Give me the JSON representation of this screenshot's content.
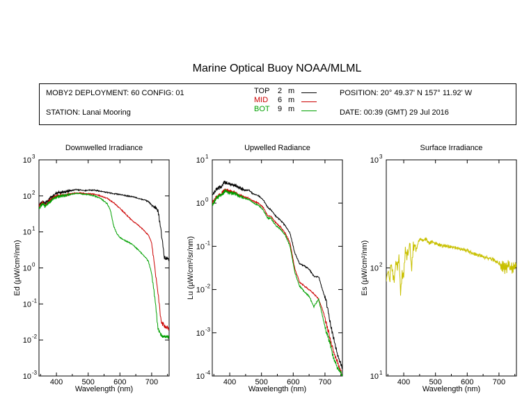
{
  "header": {
    "title": "Marine Optical Buoy NOAA/MLML",
    "deployment": "MOBY2 DEPLOYMENT: 60 CONFIG: 01",
    "station": "STATION: Lanai Mooring",
    "position": "POSITION: 20° 49.37' N   157° 11.92' W",
    "date": "DATE: 00:39 (GMT) 29 Jul 2016"
  },
  "legend": [
    {
      "name": "TOP",
      "depth": "2",
      "unit": "m",
      "color": "#000000"
    },
    {
      "name": "MID",
      "depth": "6",
      "unit": "m",
      "color": "#cc0000"
    },
    {
      "name": "BOT",
      "depth": "9",
      "unit": "m",
      "color": "#00a000"
    }
  ],
  "chart_data": [
    {
      "type": "line",
      "title": "Downwelled Irradiance",
      "xlabel": "Wavelength (nm)",
      "ylabel": "Ed  (µW/cm²/nm)",
      "xlim": [
        345,
        755
      ],
      "ylim": [
        0.001,
        1000
      ],
      "yscale": "log",
      "xticks": [
        400,
        500,
        600,
        700
      ],
      "yticks": [
        {
          "value": 0.001,
          "base": "10",
          "exp": "-3"
        },
        {
          "value": 0.01,
          "base": "10",
          "exp": "-2"
        },
        {
          "value": 0.1,
          "base": "10",
          "exp": "-1"
        },
        {
          "value": 1,
          "base": "10",
          "exp": "0"
        },
        {
          "value": 10,
          "base": "10",
          "exp": "1"
        },
        {
          "value": 100,
          "base": "10",
          "exp": "2"
        },
        {
          "value": 1000,
          "base": "10",
          "exp": "3"
        }
      ],
      "series": [
        {
          "name": "TOP",
          "color": "#000000",
          "x": [
            345,
            355,
            365,
            375,
            385,
            395,
            405,
            415,
            425,
            435,
            445,
            460,
            475,
            490,
            500,
            520,
            540,
            560,
            580,
            600,
            620,
            640,
            660,
            680,
            690,
            700,
            710,
            720,
            730,
            740,
            755
          ],
          "y": [
            55,
            70,
            60,
            80,
            90,
            110,
            120,
            125,
            130,
            135,
            140,
            150,
            145,
            140,
            145,
            145,
            135,
            125,
            115,
            110,
            100,
            95,
            85,
            75,
            70,
            55,
            50,
            40,
            10,
            2,
            1.8
          ]
        },
        {
          "name": "MID",
          "color": "#cc0000",
          "x": [
            345,
            355,
            365,
            375,
            385,
            395,
            405,
            415,
            425,
            435,
            445,
            460,
            475,
            490,
            500,
            520,
            540,
            560,
            580,
            600,
            620,
            640,
            660,
            680,
            690,
            700,
            710,
            720,
            730,
            740,
            755
          ],
          "y": [
            50,
            65,
            55,
            70,
            80,
            95,
            100,
            105,
            105,
            110,
            115,
            120,
            120,
            115,
            115,
            110,
            100,
            85,
            65,
            45,
            30,
            20,
            15,
            10,
            8,
            5,
            1,
            0.2,
            0.03,
            0.025,
            0.02
          ]
        },
        {
          "name": "BOT",
          "color": "#00a000",
          "x": [
            345,
            355,
            365,
            375,
            385,
            395,
            405,
            415,
            425,
            435,
            445,
            460,
            475,
            490,
            500,
            520,
            540,
            560,
            570,
            580,
            590,
            600,
            620,
            640,
            660,
            680,
            690,
            700,
            710,
            720,
            730,
            740,
            755
          ],
          "y": [
            45,
            60,
            50,
            65,
            75,
            90,
            95,
            100,
            100,
            105,
            110,
            115,
            115,
            110,
            110,
            100,
            85,
            60,
            40,
            15,
            9,
            7,
            5.5,
            4.5,
            3,
            2,
            1.5,
            0.7,
            0.15,
            0.02,
            0.014,
            0.012,
            0.012
          ]
        }
      ]
    },
    {
      "type": "line",
      "title": "Upwelled Radiance",
      "xlabel": "Wavelength (nm)",
      "ylabel": "Lu  (µW/cm²/sr/nm)",
      "xlim": [
        345,
        755
      ],
      "ylim": [
        0.0001,
        10
      ],
      "yscale": "log",
      "xticks": [
        400,
        500,
        600,
        700
      ],
      "yticks": [
        {
          "value": 0.0001,
          "base": "10",
          "exp": "-4"
        },
        {
          "value": 0.001,
          "base": "10",
          "exp": "-3"
        },
        {
          "value": 0.01,
          "base": "10",
          "exp": "-2"
        },
        {
          "value": 0.1,
          "base": "10",
          "exp": "-1"
        },
        {
          "value": 1,
          "base": "10",
          "exp": "0"
        },
        {
          "value": 10,
          "base": "10",
          "exp": "1"
        }
      ],
      "series": [
        {
          "name": "TOP",
          "color": "#000000",
          "x": [
            345,
            355,
            365,
            375,
            385,
            395,
            405,
            415,
            425,
            435,
            445,
            460,
            475,
            490,
            505,
            520,
            530,
            545,
            560,
            575,
            590,
            605,
            620,
            635,
            650,
            665,
            680,
            695,
            705,
            715,
            725,
            740,
            755
          ],
          "y": [
            1.5,
            2,
            2.2,
            2.5,
            3,
            2.8,
            2.6,
            2.6,
            2.4,
            2.2,
            2,
            2,
            1.6,
            1.5,
            1.2,
            0.8,
            0.7,
            0.5,
            0.4,
            0.3,
            0.2,
            0.07,
            0.04,
            0.035,
            0.03,
            0.02,
            0.02,
            0.0085,
            0.005,
            0.002,
            0.0009,
            0.0003,
            0.00015
          ]
        },
        {
          "name": "MID",
          "color": "#cc0000",
          "x": [
            345,
            355,
            365,
            375,
            385,
            395,
            405,
            415,
            425,
            435,
            445,
            460,
            475,
            490,
            505,
            520,
            530,
            545,
            560,
            575,
            590,
            605,
            620,
            635,
            650,
            665,
            680,
            695,
            705,
            715,
            725,
            740,
            755
          ],
          "y": [
            1,
            1.3,
            1.5,
            1.7,
            2,
            1.9,
            1.8,
            1.8,
            1.6,
            1.5,
            1.4,
            1.3,
            1.1,
            1,
            0.8,
            0.5,
            0.5,
            0.35,
            0.28,
            0.2,
            0.12,
            0.03,
            0.015,
            0.012,
            0.01,
            0.008,
            0.006,
            0.003,
            0.0015,
            0.0008,
            0.0004,
            0.0002,
            0.0001
          ]
        },
        {
          "name": "BOT",
          "color": "#00a000",
          "x": [
            345,
            355,
            365,
            375,
            385,
            395,
            405,
            415,
            425,
            435,
            445,
            460,
            475,
            490,
            505,
            520,
            530,
            545,
            560,
            575,
            590,
            605,
            620,
            635,
            650,
            665,
            680,
            695,
            705,
            715,
            725,
            740,
            755
          ],
          "y": [
            0.9,
            1.2,
            1.4,
            1.6,
            1.9,
            1.8,
            1.7,
            1.7,
            1.5,
            1.4,
            1.3,
            1.2,
            1,
            0.9,
            0.7,
            0.45,
            0.45,
            0.3,
            0.25,
            0.18,
            0.1,
            0.025,
            0.012,
            0.009,
            0.007,
            0.004,
            0.006,
            0.002,
            0.001,
            0.0006,
            0.0003,
            0.00015,
            0.0001
          ]
        }
      ]
    },
    {
      "type": "line",
      "title": "Surface Irradiance",
      "xlabel": "Wavelength (nm)",
      "ylabel": "Es  (µW/cm²/nm)",
      "xlim": [
        345,
        755
      ],
      "ylim": [
        10,
        1000
      ],
      "yscale": "log",
      "xticks": [
        400,
        500,
        600,
        700
      ],
      "yticks": [
        {
          "value": 10,
          "base": "10",
          "exp": "1"
        },
        {
          "value": 100,
          "base": "10",
          "exp": "2"
        },
        {
          "value": 1000,
          "base": "10",
          "exp": "3"
        }
      ],
      "series": [
        {
          "name": "Es",
          "color": "#c8c000",
          "x": [
            345,
            350,
            355,
            360,
            365,
            370,
            375,
            380,
            385,
            390,
            395,
            400,
            405,
            410,
            415,
            420,
            425,
            430,
            435,
            440,
            445,
            450,
            460,
            470,
            480,
            490,
            500,
            510,
            520,
            540,
            560,
            580,
            600,
            620,
            640,
            660,
            680,
            700,
            720,
            735,
            740,
            755
          ],
          "y": [
            75,
            100,
            70,
            110,
            90,
            75,
            110,
            100,
            130,
            60,
            90,
            85,
            140,
            130,
            150,
            155,
            100,
            160,
            165,
            150,
            170,
            185,
            180,
            185,
            170,
            175,
            170,
            165,
            160,
            160,
            155,
            150,
            145,
            135,
            130,
            125,
            120,
            110,
            100,
            105,
            100,
            110
          ]
        }
      ]
    }
  ]
}
